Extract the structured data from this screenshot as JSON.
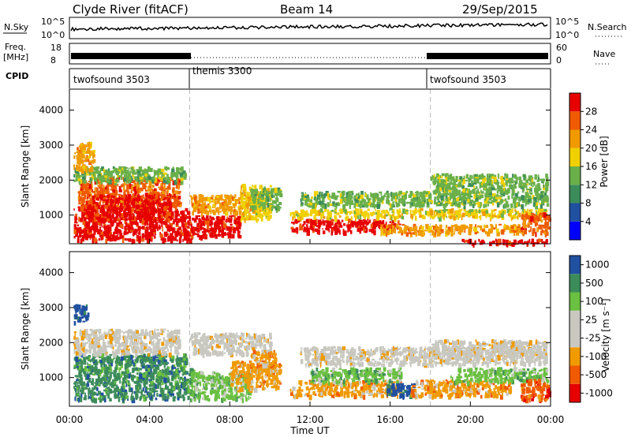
{
  "header": {
    "station": "Clyde River (fitACF)",
    "beam": "Beam 14",
    "date": "29/Sep/2015"
  },
  "panels": {
    "nsky": {
      "left_label": "N.Sky",
      "ticks": [
        "10^5",
        "10^0"
      ],
      "right_label": "N.Search",
      "right_ticks": [
        "10^5",
        "10^0"
      ]
    },
    "freq": {
      "left_label_1": "Freq.",
      "left_label_2": "[MHz]",
      "ticks": [
        "18",
        "8"
      ],
      "right_label": "Nave",
      "right_ticks": [
        "60",
        "0"
      ]
    },
    "cpid": {
      "label": "CPID",
      "modes": [
        "twofsound 3503",
        "themis 3300",
        "twofsound 3503"
      ]
    }
  },
  "colors": {
    "power": [
      "#0000ff",
      "#2050a0",
      "#3c8c5a",
      "#6ab04a",
      "#f0d000",
      "#f09a00",
      "#f05a00",
      "#e60000"
    ],
    "velocity": [
      "#e60000",
      "#f05a00",
      "#f09a00",
      "#c8c8c0",
      "#c8c8c0",
      "#6ac040",
      "#3c8c5a",
      "#2050a0"
    ]
  },
  "chart_data": [
    {
      "type": "heatmap",
      "title": "Power",
      "xlabel": "",
      "ylabel": "Slant Range [km]",
      "ylim": [
        180,
        4600
      ],
      "yticks": [
        1000,
        2000,
        3000,
        4000
      ],
      "xlim": [
        0,
        24
      ],
      "colorbar": {
        "label": "Power [dB]",
        "ticks": [
          "4",
          "8",
          "12",
          "16",
          "20",
          "24",
          "28"
        ]
      },
      "blobs": [
        {
          "x0": 0.2,
          "x1": 6.0,
          "y0": 300,
          "y1": 1200,
          "c": 7
        },
        {
          "x0": 0.4,
          "x1": 5.5,
          "y0": 1200,
          "y1": 2100,
          "c": 6
        },
        {
          "x0": 0.8,
          "x1": 5.0,
          "y0": 900,
          "y1": 1600,
          "c": 7
        },
        {
          "x0": 0.2,
          "x1": 5.8,
          "y0": 2000,
          "y1": 2400,
          "c": 3
        },
        {
          "x0": 0.2,
          "x1": 1.2,
          "y0": 2300,
          "y1": 3100,
          "c": 5
        },
        {
          "x0": 6.0,
          "x1": 8.5,
          "y0": 400,
          "y1": 1000,
          "c": 7
        },
        {
          "x0": 6.0,
          "x1": 9.5,
          "y0": 1100,
          "y1": 1600,
          "c": 5
        },
        {
          "x0": 8.5,
          "x1": 10.0,
          "y0": 900,
          "y1": 1900,
          "c": 4
        },
        {
          "x0": 9.0,
          "x1": 10.5,
          "y0": 1200,
          "y1": 1800,
          "c": 3
        },
        {
          "x0": 11.0,
          "x1": 16.5,
          "y0": 550,
          "y1": 900,
          "c": 7
        },
        {
          "x0": 11.0,
          "x1": 23.8,
          "y0": 950,
          "y1": 1200,
          "c": 4
        },
        {
          "x0": 11.5,
          "x1": 23.8,
          "y0": 1300,
          "y1": 1700,
          "c": 3
        },
        {
          "x0": 15.5,
          "x1": 22.5,
          "y0": 500,
          "y1": 750,
          "c": 5
        },
        {
          "x0": 18.0,
          "x1": 23.8,
          "y0": 1700,
          "y1": 2200,
          "c": 3
        },
        {
          "x0": 19.5,
          "x1": 23.8,
          "y0": 200,
          "y1": 330,
          "c": 7
        },
        {
          "x0": 22.5,
          "x1": 23.9,
          "y0": 500,
          "y1": 1100,
          "c": 6
        }
      ]
    },
    {
      "type": "heatmap",
      "title": "Velocity",
      "xlabel": "Time UT",
      "ylabel": "Slant Range [km]",
      "ylim": [
        180,
        4600
      ],
      "yticks": [
        1000,
        2000,
        3000,
        4000
      ],
      "xlim": [
        0,
        24
      ],
      "xticks": [
        "00:00",
        "04:00",
        "08:00",
        "12:00",
        "16:00",
        "20:00",
        "00:00"
      ],
      "colorbar": {
        "label": "Velocity [m s⁻¹]",
        "ticks": [
          "-1000",
          "-500",
          "-100",
          "-25",
          "25",
          "100",
          "500",
          "1000"
        ]
      },
      "blobs": [
        {
          "x0": 0.2,
          "x1": 6.2,
          "y0": 400,
          "y1": 1300,
          "c": 6
        },
        {
          "x0": 0.2,
          "x1": 5.8,
          "y0": 1300,
          "y1": 1700,
          "c": 6
        },
        {
          "x0": 0.2,
          "x1": 5.5,
          "y0": 1700,
          "y1": 2400,
          "c": 3
        },
        {
          "x0": 0.2,
          "x1": 0.9,
          "y0": 2600,
          "y1": 3100,
          "c": 7
        },
        {
          "x0": 6.0,
          "x1": 10.0,
          "y0": 1700,
          "y1": 2300,
          "c": 3
        },
        {
          "x0": 6.0,
          "x1": 9.0,
          "y0": 400,
          "y1": 1200,
          "c": 5
        },
        {
          "x0": 8.0,
          "x1": 10.5,
          "y0": 700,
          "y1": 1500,
          "c": 2
        },
        {
          "x0": 9.0,
          "x1": 10.3,
          "y0": 1200,
          "y1": 1800,
          "c": 2
        },
        {
          "x0": 11.0,
          "x1": 16.5,
          "y0": 500,
          "y1": 950,
          "c": 2
        },
        {
          "x0": 12.0,
          "x1": 16.5,
          "y0": 900,
          "y1": 1300,
          "c": 5
        },
        {
          "x0": 15.8,
          "x1": 17.2,
          "y0": 500,
          "y1": 850,
          "c": 7
        },
        {
          "x0": 17.0,
          "x1": 22.0,
          "y0": 500,
          "y1": 950,
          "c": 2
        },
        {
          "x0": 11.5,
          "x1": 23.8,
          "y0": 1400,
          "y1": 1900,
          "c": 3
        },
        {
          "x0": 18.0,
          "x1": 23.8,
          "y0": 1600,
          "y1": 2100,
          "c": 3
        },
        {
          "x0": 19.0,
          "x1": 23.8,
          "y0": 900,
          "y1": 1300,
          "c": 5
        },
        {
          "x0": 22.5,
          "x1": 23.9,
          "y0": 400,
          "y1": 1000,
          "c": 1
        }
      ]
    }
  ]
}
